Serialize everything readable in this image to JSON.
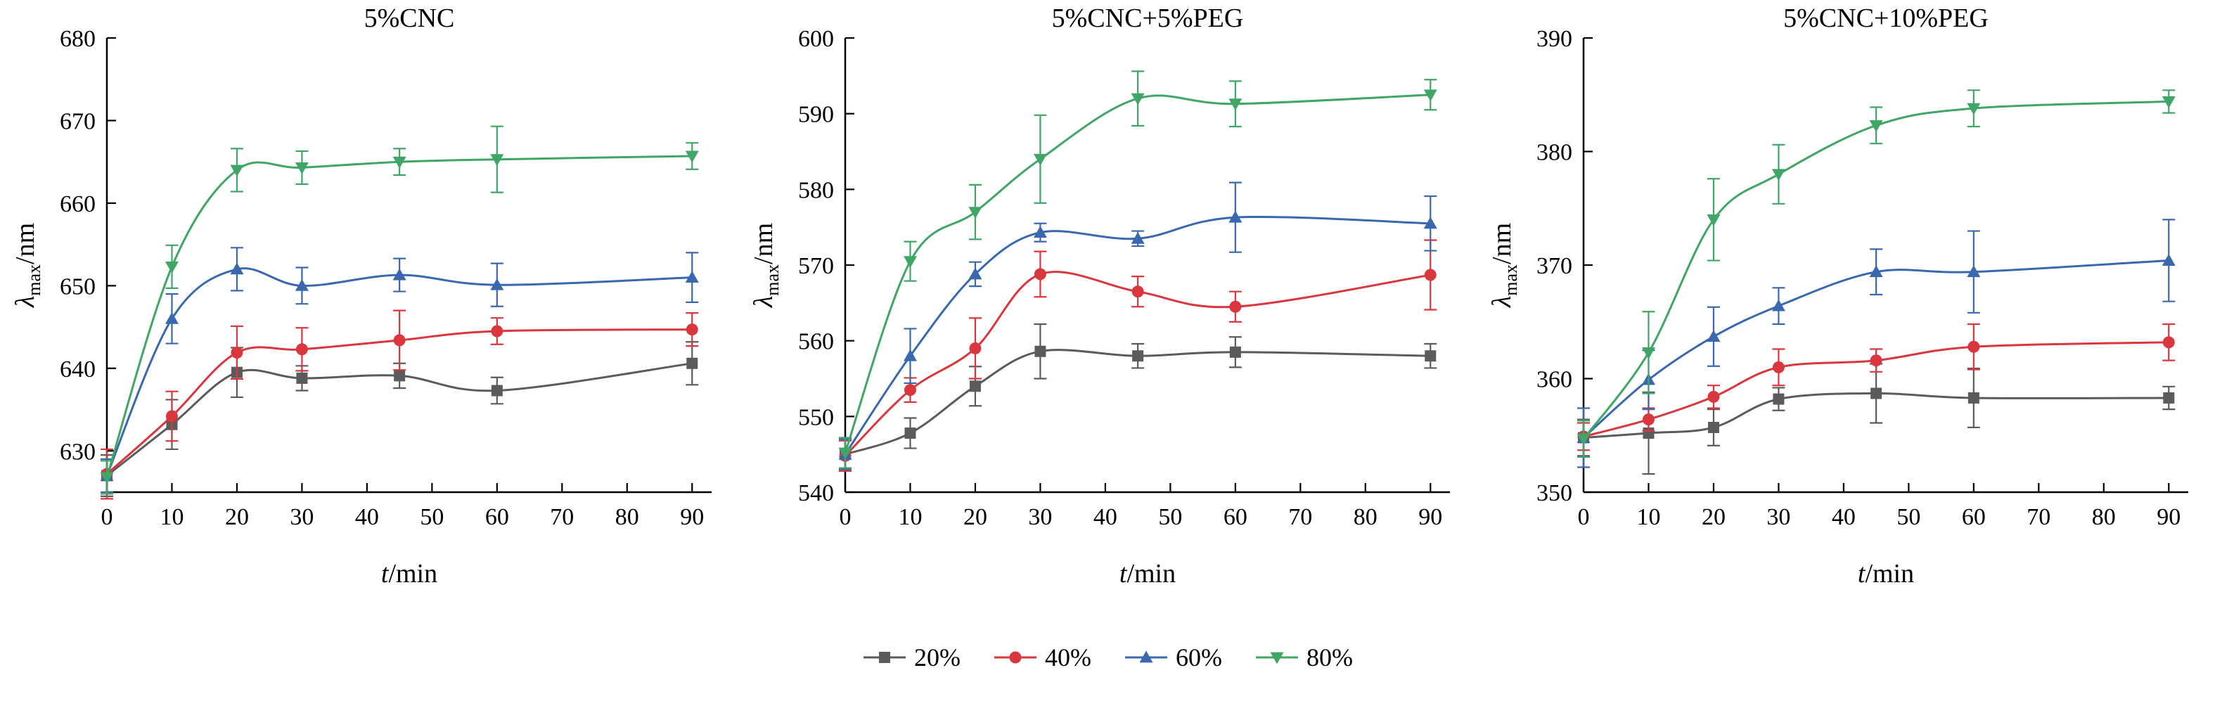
{
  "legend": {
    "items": [
      {
        "label": "20%",
        "color": "#5b5b5b",
        "marker": "square"
      },
      {
        "label": "40%",
        "color": "#d9363e",
        "marker": "circle"
      },
      {
        "label": "60%",
        "color": "#3a68ae",
        "marker": "triangle-up"
      },
      {
        "label": "80%",
        "color": "#3fa666",
        "marker": "triangle-down"
      }
    ]
  },
  "chart_data": [
    {
      "type": "line",
      "title": "5%CNC",
      "xlabel": {
        "italic": "t",
        "rest": "/min"
      },
      "ylabel": {
        "symbol": "λ",
        "sub": "max",
        "unit": "/nm"
      },
      "x": [
        0,
        10,
        20,
        30,
        45,
        60,
        90
      ],
      "xlim": [
        0,
        93
      ],
      "ylim": [
        625,
        680
      ],
      "xticks": [
        0,
        10,
        20,
        30,
        40,
        50,
        60,
        70,
        80,
        90
      ],
      "yticks": [
        630,
        640,
        650,
        660,
        670,
        680
      ],
      "series": [
        {
          "name": "20%",
          "marker": "square",
          "color": "#5b5b5b",
          "values": [
            627.0,
            633.2,
            639.5,
            638.8,
            639.1,
            637.3,
            640.6
          ],
          "errors": [
            2.5,
            3.0,
            3.0,
            1.5,
            1.5,
            1.6,
            2.6
          ]
        },
        {
          "name": "40%",
          "marker": "circle",
          "color": "#d9363e",
          "values": [
            627.2,
            634.2,
            641.9,
            642.3,
            643.4,
            644.5,
            644.7
          ],
          "errors": [
            3.0,
            3.0,
            3.2,
            2.6,
            3.6,
            1.6,
            2.0
          ]
        },
        {
          "name": "60%",
          "marker": "triangle-up",
          "color": "#3a68ae",
          "values": [
            627.0,
            646.0,
            652.0,
            650.0,
            651.3,
            650.1,
            651.0
          ],
          "errors": [
            2.0,
            3.0,
            2.6,
            2.2,
            2.0,
            2.6,
            3.0
          ]
        },
        {
          "name": "80%",
          "marker": "triangle-down",
          "color": "#3fa666",
          "values": [
            626.8,
            652.3,
            664.0,
            664.3,
            665.0,
            665.3,
            665.7
          ],
          "errors": [
            2.0,
            2.6,
            2.6,
            2.0,
            1.6,
            4.0,
            1.6
          ]
        }
      ]
    },
    {
      "type": "line",
      "title": "5%CNC+5%PEG",
      "xlabel": {
        "italic": "t",
        "rest": "/min"
      },
      "ylabel": {
        "symbol": "λ",
        "sub": "max",
        "unit": "/nm"
      },
      "x": [
        0,
        10,
        20,
        30,
        45,
        60,
        90
      ],
      "xlim": [
        0,
        93
      ],
      "ylim": [
        540,
        600
      ],
      "xticks": [
        0,
        10,
        20,
        30,
        40,
        50,
        60,
        70,
        80,
        90
      ],
      "yticks": [
        540,
        550,
        560,
        570,
        580,
        590,
        600
      ],
      "series": [
        {
          "name": "20%",
          "marker": "square",
          "color": "#5b5b5b",
          "values": [
            545.0,
            547.8,
            554.0,
            558.6,
            558.0,
            558.5,
            558.0
          ],
          "errors": [
            2.0,
            2.0,
            2.6,
            3.6,
            1.6,
            2.0,
            1.6
          ]
        },
        {
          "name": "40%",
          "marker": "circle",
          "color": "#d9363e",
          "values": [
            544.8,
            553.5,
            559.0,
            568.8,
            566.5,
            564.5,
            568.7
          ],
          "errors": [
            2.0,
            1.6,
            4.0,
            3.0,
            2.0,
            2.0,
            4.6
          ]
        },
        {
          "name": "60%",
          "marker": "triangle-up",
          "color": "#3a68ae",
          "values": [
            545.0,
            558.0,
            568.8,
            574.3,
            573.5,
            576.3,
            575.5
          ],
          "errors": [
            2.0,
            3.6,
            1.6,
            1.2,
            1.0,
            4.6,
            3.6
          ]
        },
        {
          "name": "80%",
          "marker": "triangle-down",
          "color": "#3fa666",
          "values": [
            545.2,
            570.5,
            577.0,
            584.0,
            592.0,
            591.3,
            592.5
          ],
          "errors": [
            2.0,
            2.6,
            3.6,
            5.8,
            3.6,
            3.0,
            2.0
          ]
        }
      ]
    },
    {
      "type": "line",
      "title": "5%CNC+10%PEG",
      "xlabel": {
        "italic": "t",
        "rest": "/min"
      },
      "ylabel": {
        "symbol": "λ",
        "sub": "max",
        "unit": "/nm"
      },
      "x": [
        0,
        10,
        20,
        30,
        45,
        60,
        90
      ],
      "xlim": [
        0,
        93
      ],
      "ylim": [
        350,
        390
      ],
      "xticks": [
        0,
        10,
        20,
        30,
        40,
        50,
        60,
        70,
        80,
        90
      ],
      "yticks": [
        350,
        360,
        370,
        380,
        390
      ],
      "series": [
        {
          "name": "20%",
          "marker": "square",
          "color": "#5b5b5b",
          "values": [
            354.8,
            355.2,
            355.7,
            358.2,
            358.7,
            358.3,
            358.3
          ],
          "errors": [
            1.6,
            3.6,
            1.6,
            1.0,
            2.6,
            2.6,
            1.0
          ]
        },
        {
          "name": "40%",
          "marker": "circle",
          "color": "#d9363e",
          "values": [
            354.9,
            356.4,
            358.4,
            361.0,
            361.6,
            362.8,
            363.2
          ],
          "errors": [
            1.2,
            1.0,
            1.0,
            1.6,
            1.0,
            2.0,
            1.6
          ]
        },
        {
          "name": "60%",
          "marker": "triangle-up",
          "color": "#3a68ae",
          "values": [
            354.8,
            359.9,
            363.7,
            366.4,
            369.4,
            369.4,
            370.4
          ],
          "errors": [
            2.6,
            2.6,
            2.6,
            1.6,
            2.0,
            3.6,
            3.6
          ]
        },
        {
          "name": "80%",
          "marker": "triangle-down",
          "color": "#3fa666",
          "values": [
            354.7,
            362.3,
            374.0,
            378.0,
            382.3,
            383.8,
            384.4
          ],
          "errors": [
            1.6,
            3.6,
            3.6,
            2.6,
            1.6,
            1.6,
            1.0
          ]
        }
      ]
    }
  ]
}
